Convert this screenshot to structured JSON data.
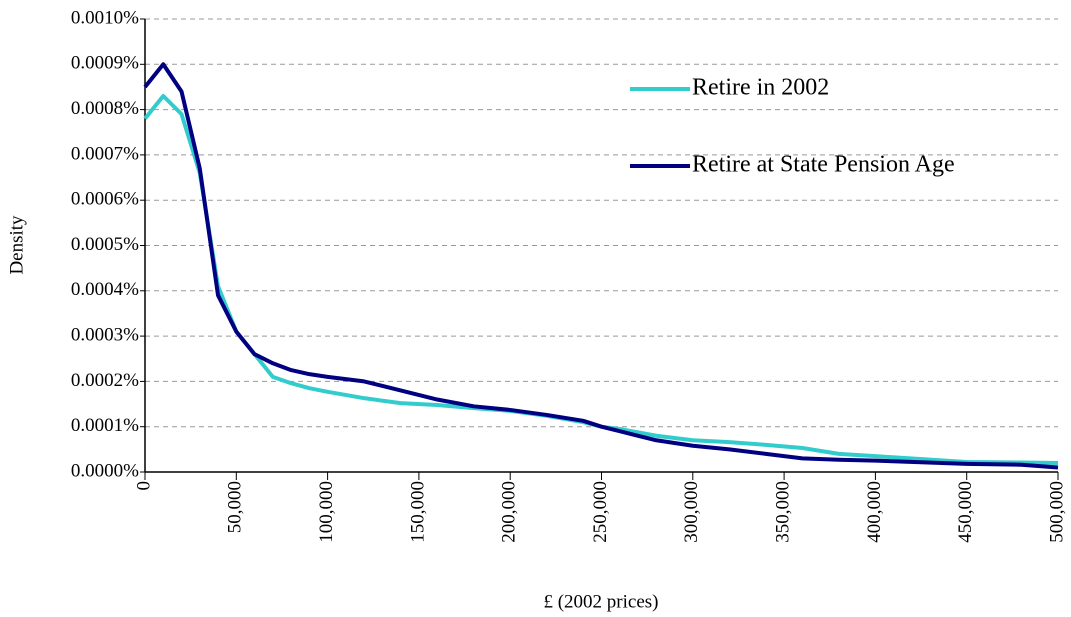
{
  "chart_data": {
    "type": "line",
    "x_label": "£ (2002 prices)",
    "y_label": "Density",
    "x": [
      0,
      10000,
      20000,
      30000,
      40000,
      50000,
      60000,
      70000,
      80000,
      90000,
      100000,
      120000,
      140000,
      160000,
      180000,
      200000,
      220000,
      240000,
      250000,
      260000,
      280000,
      300000,
      320000,
      340000,
      360000,
      380000,
      400000,
      450000,
      480000,
      500000
    ],
    "series": [
      {
        "name": "Retire in 2002",
        "color": "#33cccc",
        "values": [
          0.00078,
          0.00083,
          0.00079,
          0.00066,
          0.00041,
          0.00031,
          0.00026,
          0.00021,
          0.000196,
          0.000185,
          0.000177,
          0.000163,
          0.000152,
          0.000148,
          0.000141,
          0.000135,
          0.000124,
          0.00011,
          0.0001,
          9.5e-05,
          8e-05,
          7e-05,
          6.6e-05,
          6e-05,
          5.3e-05,
          4e-05,
          3.5e-05,
          2.2e-05,
          2.1e-05,
          2e-05
        ]
      },
      {
        "name": "Retire at State Pension Age",
        "color": "#000080",
        "values": [
          0.00085,
          0.0009,
          0.00084,
          0.00067,
          0.00039,
          0.00031,
          0.00026,
          0.00024,
          0.000225,
          0.000216,
          0.00021,
          0.0002,
          0.00018,
          0.00016,
          0.000145,
          0.000137,
          0.000126,
          0.000113,
          0.0001,
          9e-05,
          7e-05,
          5.8e-05,
          5e-05,
          4e-05,
          3e-05,
          2.7e-05,
          2.5e-05,
          1.8e-05,
          1.6e-05,
          1e-05
        ]
      }
    ],
    "xlim": [
      0,
      500000
    ],
    "xticks": [
      0,
      {
        "value": 50000,
        "label": "50,000"
      },
      {
        "value": 100000,
        "label": "100,000"
      },
      {
        "value": 150000,
        "label": "150,000"
      },
      {
        "value": 200000,
        "label": "200,000"
      },
      {
        "value": 250000,
        "label": "250,000"
      },
      {
        "value": 300000,
        "label": "300,000"
      },
      {
        "value": 350000,
        "label": "350,000"
      },
      {
        "value": 400000,
        "label": "400,000"
      },
      {
        "value": 450000,
        "label": "450,000"
      },
      {
        "value": 500000,
        "label": "500,000"
      }
    ],
    "ylim": [
      0,
      0.001
    ],
    "yticks": [
      {
        "value": 0,
        "label": "0.0000%"
      },
      {
        "value": 0.0001,
        "label": "0.0001%"
      },
      {
        "value": 0.0002,
        "label": "0.0002%"
      },
      {
        "value": 0.0003,
        "label": "0.0003%"
      },
      {
        "value": 0.0004,
        "label": "0.0004%"
      },
      {
        "value": 0.0005,
        "label": "0.0005%"
      },
      {
        "value": 0.0006,
        "label": "0.0006%"
      },
      {
        "value": 0.0007,
        "label": "0.0007%"
      },
      {
        "value": 0.0008,
        "label": "0.0008%"
      },
      {
        "value": 0.0009,
        "label": "0.0009%"
      },
      {
        "value": 0.001,
        "label": "0.0010%"
      }
    ],
    "grid": true,
    "legend": "upper right"
  }
}
